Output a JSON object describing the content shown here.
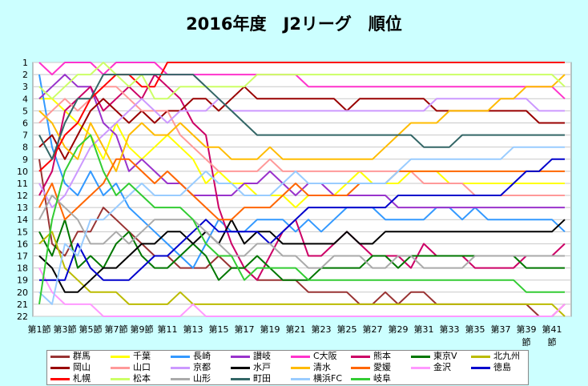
{
  "chart_data": {
    "type": "line",
    "title": "2016年度　J2リーグ　順位",
    "ylim": [
      1,
      22
    ],
    "y_reversed": true,
    "y_ticks": [
      "1",
      "2",
      "3",
      "4",
      "5",
      "6",
      "7",
      "8",
      "9",
      "10",
      "11",
      "12",
      "13",
      "14",
      "15",
      "16",
      "17",
      "18",
      "19",
      "20",
      "21",
      "22"
    ],
    "x_tick_labels": [
      "第1節",
      "第3節",
      "第5節",
      "第7節",
      "第9節",
      "第11",
      "第13",
      "第15",
      "第17",
      "第19",
      "第21",
      "第23",
      "第25",
      "第27",
      "第29",
      "第31",
      "第33",
      "第35",
      "第37",
      "第39",
      "第41"
    ],
    "x_tick_labels_row2": [
      "節",
      "節"
    ],
    "rounds": 42,
    "grid": true,
    "legend_position": "bottom",
    "series": [
      {
        "name": "群馬",
        "color": "#993333",
        "values": [
          9,
          16,
          17,
          15,
          15,
          13,
          14,
          15,
          16,
          17,
          17,
          18,
          18,
          18,
          17,
          18,
          18,
          19,
          19,
          19,
          19,
          20,
          20,
          20,
          20,
          21,
          21,
          20,
          21,
          20,
          20,
          21,
          21,
          21,
          21,
          21,
          21,
          21,
          21,
          22,
          22,
          21
        ]
      },
      {
        "name": "千葉",
        "color": "#ffff00",
        "values": [
          4,
          4,
          5,
          6,
          7,
          9,
          6,
          8,
          9,
          8,
          7,
          8,
          9,
          11,
          10,
          11,
          11,
          12,
          12,
          12,
          13,
          12,
          12,
          12,
          11,
          10,
          11,
          11,
          11,
          10,
          10,
          10,
          11,
          11,
          11,
          11,
          11,
          11,
          11,
          11,
          11,
          11
        ]
      },
      {
        "name": "長崎",
        "color": "#3399ff",
        "values": [
          2,
          8,
          11,
          12,
          10,
          12,
          11,
          13,
          14,
          15,
          16,
          17,
          18,
          16,
          14,
          15,
          15,
          14,
          14,
          14,
          15,
          14,
          15,
          14,
          13,
          13,
          13,
          14,
          14,
          14,
          14,
          13,
          13,
          14,
          13,
          14,
          14,
          14,
          14,
          14,
          14,
          15
        ]
      },
      {
        "name": "讃岐",
        "color": "#9933cc",
        "values": [
          4,
          3,
          2,
          3,
          3,
          6,
          7,
          10,
          9,
          10,
          11,
          11,
          12,
          12,
          12,
          12,
          11,
          11,
          10,
          11,
          12,
          11,
          11,
          12,
          12,
          12,
          12,
          12,
          13,
          13,
          13,
          13,
          13,
          13,
          13,
          13,
          13,
          13,
          13,
          13,
          13,
          13
        ]
      },
      {
        "name": "C大阪",
        "color": "#ff33cc",
        "values": [
          1,
          2,
          1,
          1,
          1,
          2,
          1,
          1,
          1,
          1,
          2,
          2,
          2,
          2,
          2,
          2,
          2,
          2,
          2,
          2,
          2,
          3,
          3,
          3,
          3,
          3,
          3,
          3,
          3,
          3,
          3,
          3,
          3,
          3,
          3,
          3,
          3,
          3,
          3,
          3,
          3,
          4
        ]
      },
      {
        "name": "熊本",
        "color": "#cc0066",
        "values": [
          12,
          10,
          5,
          4,
          3,
          5,
          4,
          3,
          4,
          2,
          3,
          4,
          6,
          7,
          13,
          16,
          18,
          19,
          17,
          15,
          14,
          17,
          17,
          16,
          15,
          16,
          17,
          17,
          17,
          18,
          16,
          17,
          17,
          17,
          18,
          18,
          18,
          18,
          17,
          17,
          17,
          16
        ]
      },
      {
        "name": "東京V",
        "color": "#007700",
        "values": [
          15,
          17,
          14,
          18,
          17,
          18,
          16,
          15,
          17,
          18,
          18,
          17,
          16,
          17,
          19,
          18,
          18,
          17,
          18,
          19,
          19,
          19,
          18,
          18,
          18,
          18,
          17,
          17,
          18,
          17,
          17,
          17,
          17,
          17,
          17,
          17,
          17,
          17,
          18,
          18,
          18,
          18
        ]
      },
      {
        "name": "北九州",
        "color": "#bbbb00",
        "values": [
          16,
          15,
          18,
          19,
          20,
          20,
          20,
          21,
          21,
          21,
          21,
          20,
          21,
          21,
          21,
          21,
          21,
          21,
          21,
          21,
          21,
          21,
          21,
          21,
          21,
          21,
          21,
          21,
          21,
          21,
          21,
          21,
          21,
          21,
          21,
          21,
          21,
          21,
          21,
          21,
          21,
          22
        ]
      },
      {
        "name": "岡山",
        "color": "#990000",
        "values": [
          8,
          7,
          9,
          7,
          5,
          4,
          5,
          6,
          5,
          6,
          5,
          5,
          4,
          4,
          5,
          4,
          3,
          4,
          4,
          4,
          4,
          4,
          4,
          4,
          5,
          4,
          4,
          4,
          4,
          4,
          4,
          5,
          5,
          5,
          5,
          5,
          5,
          5,
          5,
          6,
          6,
          6
        ]
      },
      {
        "name": "山口",
        "color": "#ff9999",
        "values": [
          6,
          5,
          4,
          5,
          4,
          3,
          3,
          4,
          5,
          5,
          5,
          7,
          8,
          9,
          10,
          10,
          10,
          10,
          9,
          10,
          10,
          10,
          10,
          10,
          10,
          10,
          10,
          10,
          10,
          10,
          11,
          11,
          11,
          11,
          12,
          12,
          12,
          12,
          12,
          12,
          12,
          12
        ]
      },
      {
        "name": "京都",
        "color": "#cc99ff",
        "values": [
          11,
          13,
          12,
          10,
          8,
          7,
          6,
          5,
          4,
          5,
          6,
          5,
          5,
          5,
          4,
          5,
          5,
          5,
          5,
          5,
          5,
          5,
          5,
          5,
          5,
          5,
          5,
          5,
          5,
          5,
          5,
          4,
          4,
          4,
          4,
          4,
          4,
          4,
          4,
          5,
          5,
          5
        ]
      },
      {
        "name": "水戸",
        "color": "#000000",
        "values": [
          17,
          18,
          20,
          20,
          19,
          18,
          18,
          17,
          16,
          16,
          15,
          15,
          16,
          15,
          16,
          14,
          16,
          15,
          15,
          16,
          16,
          16,
          16,
          16,
          15,
          16,
          16,
          15,
          15,
          15,
          15,
          15,
          15,
          15,
          15,
          15,
          15,
          15,
          15,
          15,
          15,
          14
        ]
      },
      {
        "name": "清水",
        "color": "#ffbb00",
        "values": [
          5,
          6,
          8,
          9,
          6,
          8,
          10,
          7,
          6,
          7,
          7,
          6,
          7,
          8,
          8,
          9,
          9,
          9,
          8,
          9,
          9,
          9,
          9,
          9,
          9,
          9,
          9,
          8,
          7,
          6,
          6,
          6,
          5,
          5,
          5,
          5,
          4,
          4,
          3,
          3,
          3,
          2
        ]
      },
      {
        "name": "愛媛",
        "color": "#ff6600",
        "values": [
          13,
          11,
          14,
          13,
          12,
          11,
          9,
          9,
          10,
          11,
          10,
          11,
          12,
          13,
          14,
          14,
          13,
          13,
          13,
          12,
          11,
          12,
          12,
          12,
          12,
          11,
          11,
          11,
          10,
          10,
          10,
          10,
          10,
          10,
          10,
          10,
          10,
          10,
          10,
          10,
          10,
          10
        ]
      },
      {
        "name": "金沢",
        "color": "#ff99ff",
        "values": [
          18,
          20,
          21,
          21,
          21,
          22,
          22,
          22,
          22,
          22,
          22,
          22,
          21,
          22,
          22,
          22,
          22,
          22,
          22,
          22,
          22,
          22,
          22,
          22,
          22,
          22,
          22,
          22,
          22,
          22,
          22,
          22,
          22,
          22,
          22,
          22,
          22,
          22,
          22,
          22,
          22,
          21
        ]
      },
      {
        "name": "徳島",
        "color": "#0000cc",
        "values": [
          19,
          19,
          19,
          16,
          18,
          19,
          19,
          19,
          18,
          17,
          17,
          16,
          15,
          14,
          15,
          15,
          15,
          15,
          16,
          15,
          14,
          13,
          13,
          13,
          13,
          13,
          13,
          13,
          12,
          12,
          12,
          12,
          12,
          12,
          12,
          12,
          12,
          11,
          10,
          10,
          9,
          9
        ]
      },
      {
        "name": "札幌",
        "color": "#ff0000",
        "values": [
          10,
          9,
          7,
          6,
          4,
          3,
          2,
          2,
          3,
          3,
          1,
          1,
          1,
          1,
          1,
          1,
          1,
          1,
          1,
          1,
          1,
          1,
          1,
          1,
          1,
          1,
          1,
          1,
          1,
          1,
          1,
          1,
          1,
          1,
          1,
          1,
          1,
          1,
          1,
          1,
          1,
          1
        ]
      },
      {
        "name": "松本",
        "color": "#ccff66",
        "values": [
          3,
          4,
          3,
          2,
          2,
          1,
          2,
          3,
          2,
          4,
          4,
          3,
          3,
          3,
          3,
          3,
          3,
          2,
          2,
          2,
          2,
          2,
          2,
          2,
          2,
          2,
          2,
          2,
          2,
          2,
          2,
          2,
          2,
          2,
          2,
          2,
          2,
          2,
          2,
          2,
          2,
          3
        ]
      },
      {
        "name": "山形",
        "color": "#aaaaaa",
        "values": [
          14,
          12,
          13,
          14,
          16,
          16,
          15,
          16,
          15,
          14,
          14,
          14,
          14,
          15,
          16,
          17,
          17,
          16,
          16,
          17,
          17,
          18,
          18,
          17,
          17,
          17,
          18,
          18,
          17,
          17,
          18,
          18,
          18,
          18,
          17,
          17,
          17,
          17,
          17,
          17,
          17,
          17
        ]
      },
      {
        "name": "町田",
        "color": "#336666",
        "values": [
          7,
          9,
          6,
          4,
          4,
          2,
          2,
          2,
          2,
          2,
          2,
          2,
          2,
          3,
          4,
          5,
          6,
          7,
          7,
          7,
          7,
          7,
          7,
          7,
          7,
          7,
          7,
          7,
          7,
          7,
          8,
          8,
          8,
          7,
          7,
          7,
          7,
          7,
          7,
          7,
          7,
          7
        ]
      },
      {
        "name": "横浜FC",
        "color": "#99ccff",
        "values": [
          20,
          21,
          16,
          17,
          14,
          14,
          13,
          12,
          11,
          12,
          12,
          12,
          11,
          10,
          11,
          11,
          12,
          12,
          12,
          11,
          10,
          11,
          11,
          11,
          11,
          11,
          11,
          11,
          10,
          9,
          9,
          9,
          9,
          9,
          9,
          9,
          9,
          8,
          8,
          8,
          8,
          8
        ]
      },
      {
        "name": "岐阜",
        "color": "#33cc33",
        "values": [
          21,
          14,
          10,
          8,
          7,
          10,
          12,
          11,
          12,
          13,
          13,
          13,
          14,
          16,
          17,
          17,
          19,
          18,
          18,
          18,
          18,
          19,
          19,
          19,
          19,
          19,
          19,
          19,
          19,
          19,
          19,
          19,
          19,
          19,
          19,
          19,
          19,
          19,
          20,
          20,
          20,
          20
        ]
      }
    ]
  }
}
